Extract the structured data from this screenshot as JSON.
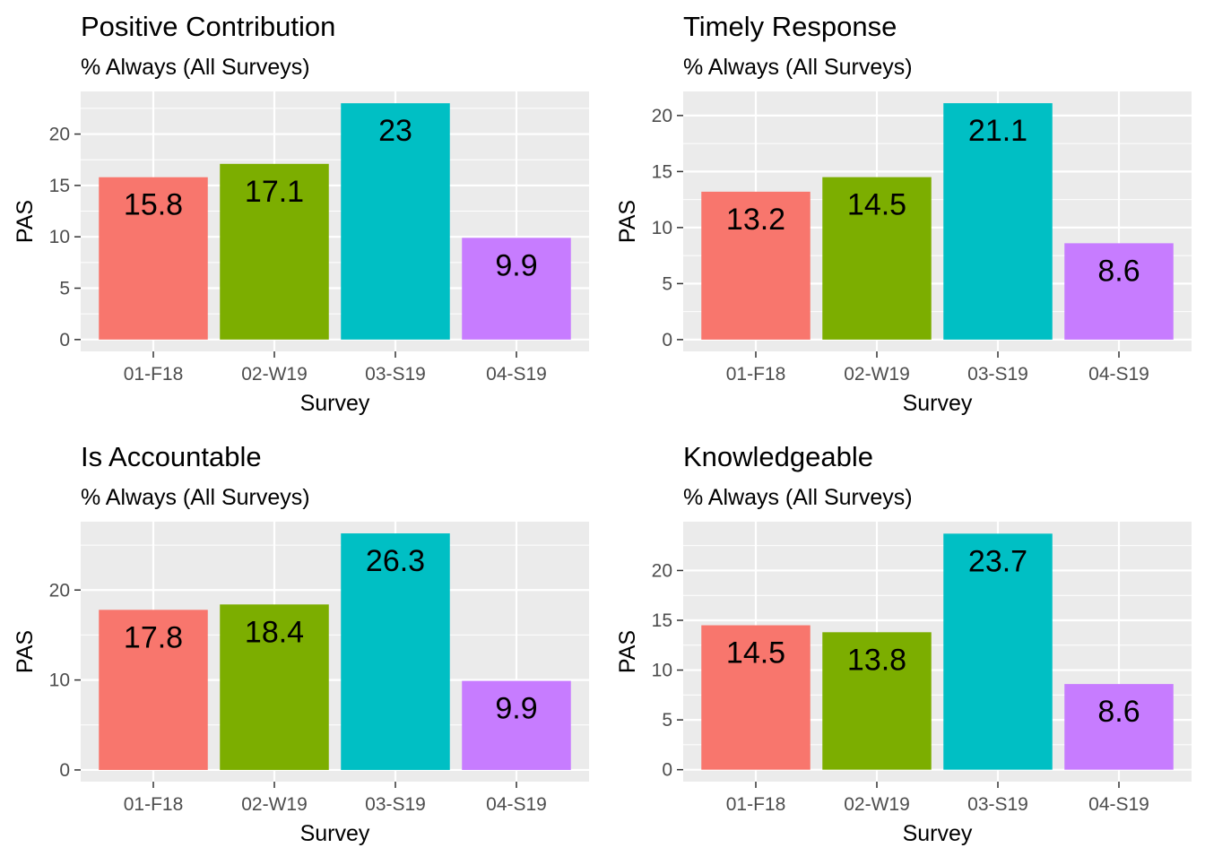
{
  "chart_data": [
    {
      "type": "bar",
      "title": "Positive Contribution",
      "subtitle": "% Always (All Surveys)",
      "xlabel": "Survey",
      "ylabel": "PAS",
      "categories": [
        "01-F18",
        "02-W19",
        "03-S19",
        "04-S19"
      ],
      "values": [
        15.8,
        17.1,
        23,
        9.9
      ],
      "labels": [
        "15.8",
        "17.1",
        "23",
        "9.9"
      ],
      "ylim": [
        -1.15,
        24.15
      ],
      "yticks": [
        0,
        5,
        10,
        15,
        20
      ],
      "ytick_labels": [
        "0",
        "5",
        "10",
        "15",
        "20"
      ],
      "grid": true,
      "legend": "none",
      "colors": [
        "#F8766D",
        "#7CAE00",
        "#00BFC4",
        "#C77CFF"
      ]
    },
    {
      "type": "bar",
      "title": "Timely Response",
      "subtitle": "% Always (All Surveys)",
      "xlabel": "Survey",
      "ylabel": "PAS",
      "categories": [
        "01-F18",
        "02-W19",
        "03-S19",
        "04-S19"
      ],
      "values": [
        13.2,
        14.5,
        21.1,
        8.6
      ],
      "labels": [
        "13.2",
        "14.5",
        "21.1",
        "8.6"
      ],
      "ylim": [
        -1.05,
        22.15
      ],
      "yticks": [
        0,
        5,
        10,
        15,
        20
      ],
      "ytick_labels": [
        "0",
        "5",
        "10",
        "15",
        "20"
      ],
      "grid": true,
      "legend": "none",
      "colors": [
        "#F8766D",
        "#7CAE00",
        "#00BFC4",
        "#C77CFF"
      ]
    },
    {
      "type": "bar",
      "title": "Is Accountable",
      "subtitle": "% Always (All Surveys)",
      "xlabel": "Survey",
      "ylabel": "PAS",
      "categories": [
        "01-F18",
        "02-W19",
        "03-S19",
        "04-S19"
      ],
      "values": [
        17.8,
        18.4,
        26.3,
        9.9
      ],
      "labels": [
        "17.8",
        "18.4",
        "26.3",
        "9.9"
      ],
      "ylim": [
        -1.3,
        27.6
      ],
      "yticks": [
        0,
        10,
        20
      ],
      "ytick_labels": [
        "0",
        "10",
        "20"
      ],
      "grid": true,
      "legend": "none",
      "colors": [
        "#F8766D",
        "#7CAE00",
        "#00BFC4",
        "#C77CFF"
      ]
    },
    {
      "type": "bar",
      "title": "Knowledgeable",
      "subtitle": "% Always (All Surveys)",
      "xlabel": "Survey",
      "ylabel": "PAS",
      "categories": [
        "01-F18",
        "02-W19",
        "03-S19",
        "04-S19"
      ],
      "values": [
        14.5,
        13.8,
        23.7,
        8.6
      ],
      "labels": [
        "14.5",
        "13.8",
        "23.7",
        "8.6"
      ],
      "ylim": [
        -1.2,
        24.9
      ],
      "yticks": [
        0,
        5,
        10,
        15,
        20
      ],
      "ytick_labels": [
        "0",
        "5",
        "10",
        "15",
        "20"
      ],
      "grid": true,
      "legend": "none",
      "colors": [
        "#F8766D",
        "#7CAE00",
        "#00BFC4",
        "#C77CFF"
      ]
    }
  ]
}
